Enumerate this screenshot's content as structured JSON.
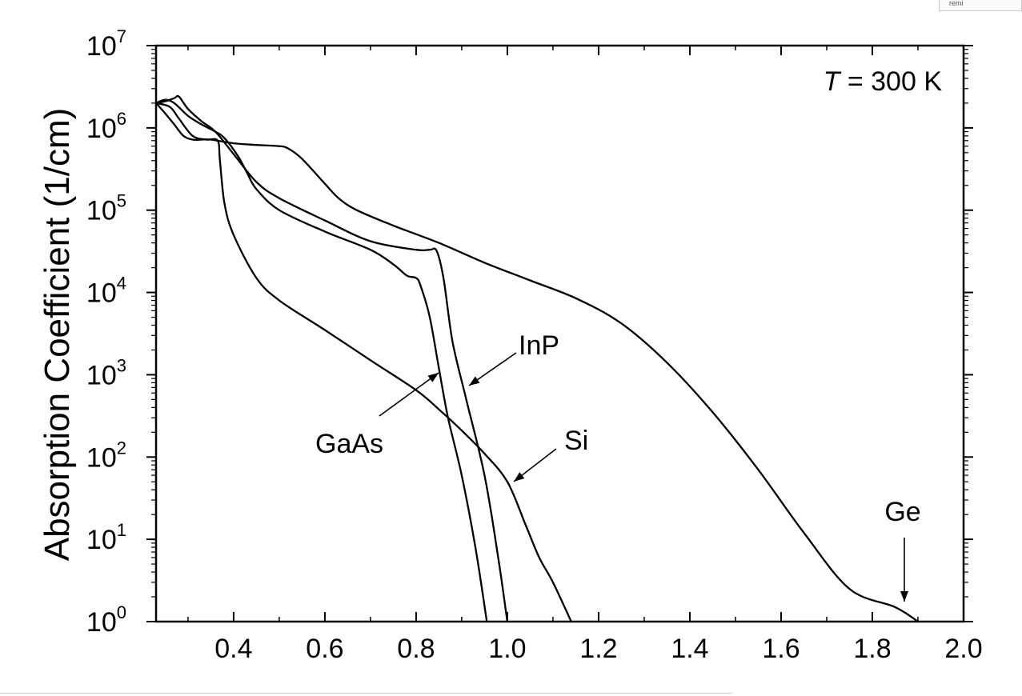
{
  "corner_fragment": "remi",
  "chart_data": {
    "type": "line",
    "title": "",
    "xlabel": "",
    "ylabel": "Absorption Coefficient (1/cm)",
    "yscale": "log",
    "xlim": [
      0.23,
      2.0
    ],
    "ylim": [
      1,
      10000000
    ],
    "x_ticks": [
      "0.4",
      "0.6",
      "0.8",
      "1.0",
      "1.2",
      "1.4",
      "1.6",
      "1.8",
      "2.0"
    ],
    "y_ticks": [
      {
        "base": "10",
        "exp": "0"
      },
      {
        "base": "10",
        "exp": "1"
      },
      {
        "base": "10",
        "exp": "2"
      },
      {
        "base": "10",
        "exp": "3"
      },
      {
        "base": "10",
        "exp": "4"
      },
      {
        "base": "10",
        "exp": "5"
      },
      {
        "base": "10",
        "exp": "6"
      },
      {
        "base": "10",
        "exp": "7"
      }
    ],
    "annotation": {
      "italic": "T",
      "rest": " = 300 K"
    },
    "series": [
      {
        "name": "Ge",
        "x": [
          0.23,
          0.25,
          0.27,
          0.29,
          0.31,
          0.33,
          0.35,
          0.4,
          0.45,
          0.5,
          0.52,
          0.55,
          0.6,
          0.63,
          0.67,
          0.75,
          0.85,
          0.95,
          1.05,
          1.15,
          1.25,
          1.35,
          1.45,
          1.55,
          1.65,
          1.75,
          1.85,
          1.9
        ],
        "y": [
          2000000,
          1500000,
          1100000,
          800000,
          720000,
          720000,
          720000,
          650000,
          620000,
          600000,
          560000,
          420000,
          210000,
          140000,
          100000,
          65000,
          40000,
          23000,
          14000,
          8500,
          4200,
          1400,
          350,
          70,
          12,
          2.5,
          1.5,
          1.0
        ]
      },
      {
        "name": "Si",
        "x": [
          0.23,
          0.26,
          0.28,
          0.31,
          0.34,
          0.365,
          0.37,
          0.38,
          0.4,
          0.45,
          0.5,
          0.6,
          0.7,
          0.8,
          0.85,
          0.9,
          0.95,
          1.0,
          1.04,
          1.07,
          1.1,
          1.14
        ],
        "y": [
          2000000,
          1800000,
          1300000,
          800000,
          720000,
          700000,
          400000,
          120000,
          50000,
          15000,
          8000,
          3500,
          1500,
          650,
          380,
          210,
          110,
          50,
          15,
          6,
          3,
          1.0
        ]
      },
      {
        "name": "GaAs",
        "x": [
          0.23,
          0.25,
          0.27,
          0.3,
          0.33,
          0.36,
          0.38,
          0.41,
          0.43,
          0.45,
          0.5,
          0.6,
          0.7,
          0.75,
          0.78,
          0.8,
          0.81,
          0.83,
          0.85,
          0.87,
          0.9,
          0.93,
          0.955
        ],
        "y": [
          2000000,
          2200000,
          2000000,
          1400000,
          1100000,
          900000,
          750000,
          450000,
          280000,
          180000,
          100000,
          55000,
          33000,
          22000,
          16000,
          15000,
          12000,
          5000,
          1200,
          300,
          60,
          8,
          1.0
        ]
      },
      {
        "name": "InP",
        "x": [
          0.23,
          0.25,
          0.27,
          0.28,
          0.3,
          0.33,
          0.36,
          0.4,
          0.45,
          0.5,
          0.6,
          0.7,
          0.8,
          0.83,
          0.845,
          0.86,
          0.88,
          0.91,
          0.95,
          0.98,
          1.0
        ],
        "y": [
          2000000,
          2100000,
          2300000,
          2400000,
          1700000,
          1200000,
          900000,
          480000,
          220000,
          140000,
          75000,
          42000,
          33000,
          33000,
          32000,
          15000,
          2500,
          500,
          60,
          6,
          1.0
        ]
      }
    ],
    "labels": [
      {
        "text": "InP",
        "series": "InP"
      },
      {
        "text": "GaAs",
        "series": "GaAs"
      },
      {
        "text": "Si",
        "series": "Si"
      },
      {
        "text": "Ge",
        "series": "Ge"
      }
    ],
    "grid": false,
    "legend": "none"
  }
}
